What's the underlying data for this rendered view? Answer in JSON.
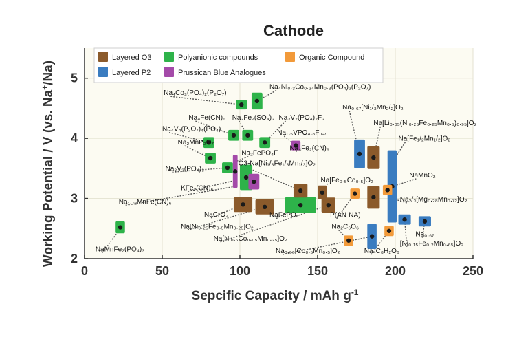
{
  "chart_data": {
    "type": "scatter",
    "title": "Cathode",
    "xlabel": "Sepcific Capacity / mAh g",
    "xlabel_sup": "-1",
    "ylabel": "Working Potential / V (vs. Na",
    "ylabel_sup": "+",
    "ylabel_tail": "/Na)",
    "xlim": [
      0,
      250
    ],
    "ylim": [
      2,
      5.5
    ],
    "xticks": [
      0,
      50,
      100,
      150,
      200,
      250
    ],
    "yticks": [
      2,
      3,
      4,
      5
    ],
    "grid": true,
    "legend_position": "top-left",
    "categories": [
      {
        "id": "o3",
        "name": "Layered O3",
        "color": "#8b5a2b"
      },
      {
        "id": "p2",
        "name": "Layered P2",
        "color": "#3a7cc0"
      },
      {
        "id": "poly",
        "name": "Polyanionic compounds",
        "color": "#2eb34a"
      },
      {
        "id": "pba",
        "name": "Prussican Blue Analogues",
        "color": "#a44aa9"
      },
      {
        "id": "org",
        "name": "Organic Compound",
        "color": "#f29a3a"
      }
    ],
    "points": [
      {
        "cat": "poly",
        "x": 23,
        "y": 2.52,
        "w": 6,
        "h": 0.2
      },
      {
        "cat": "poly",
        "x": 101,
        "y": 4.56,
        "w": 7,
        "h": 0.16
      },
      {
        "cat": "poly",
        "x": 111,
        "y": 4.62,
        "w": 7,
        "h": 0.28
      },
      {
        "cat": "poly",
        "x": 96,
        "y": 4.05,
        "w": 7,
        "h": 0.18
      },
      {
        "cat": "poly",
        "x": 105,
        "y": 4.05,
        "w": 7,
        "h": 0.18
      },
      {
        "cat": "poly",
        "x": 80,
        "y": 3.93,
        "w": 7,
        "h": 0.18
      },
      {
        "cat": "poly",
        "x": 116,
        "y": 3.93,
        "w": 7,
        "h": 0.18
      },
      {
        "cat": "poly",
        "x": 81,
        "y": 3.67,
        "w": 7,
        "h": 0.18
      },
      {
        "cat": "poly",
        "x": 92,
        "y": 3.51,
        "w": 7,
        "h": 0.18
      },
      {
        "cat": "poly",
        "x": 104,
        "y": 3.35,
        "w": 8,
        "h": 0.42
      },
      {
        "cat": "poly",
        "x": 139,
        "y": 2.89,
        "w": 20,
        "h": 0.26
      },
      {
        "cat": "pba",
        "x": 136,
        "y": 3.88,
        "w": 6,
        "h": 0.16
      },
      {
        "cat": "pba",
        "x": 97,
        "y": 3.45,
        "w": 3,
        "h": 0.55
      },
      {
        "cat": "pba",
        "x": 109,
        "y": 3.28,
        "w": 7,
        "h": 0.26
      },
      {
        "cat": "o3",
        "x": 102,
        "y": 2.9,
        "w": 12,
        "h": 0.25
      },
      {
        "cat": "o3",
        "x": 116,
        "y": 2.86,
        "w": 12,
        "h": 0.25
      },
      {
        "cat": "o3",
        "x": 139,
        "y": 3.13,
        "w": 9,
        "h": 0.23
      },
      {
        "cat": "o3",
        "x": 153,
        "y": 3.1,
        "w": 6,
        "h": 0.23
      },
      {
        "cat": "o3",
        "x": 157,
        "y": 2.89,
        "w": 9,
        "h": 0.25
      },
      {
        "cat": "o3",
        "x": 186,
        "y": 3.68,
        "w": 8,
        "h": 0.38
      },
      {
        "cat": "o3",
        "x": 186,
        "y": 3.02,
        "w": 8,
        "h": 0.38
      },
      {
        "cat": "p2",
        "x": 177,
        "y": 3.74,
        "w": 7,
        "h": 0.48
      },
      {
        "cat": "p2",
        "x": 198,
        "y": 3.2,
        "w": 6,
        "h": 1.2
      },
      {
        "cat": "p2",
        "x": 206,
        "y": 2.65,
        "w": 8,
        "h": 0.17
      },
      {
        "cat": "p2",
        "x": 219,
        "y": 2.62,
        "w": 8,
        "h": 0.17
      },
      {
        "cat": "p2",
        "x": 185,
        "y": 2.37,
        "w": 6,
        "h": 0.42
      },
      {
        "cat": "org",
        "x": 174,
        "y": 3.08,
        "w": 6,
        "h": 0.17
      },
      {
        "cat": "org",
        "x": 195,
        "y": 3.14,
        "w": 6,
        "h": 0.17
      },
      {
        "cat": "org",
        "x": 170,
        "y": 2.3,
        "w": 6,
        "h": 0.17
      },
      {
        "cat": "org",
        "x": 196,
        "y": 2.46,
        "w": 6,
        "h": 0.17
      }
    ],
    "annotations": [
      {
        "text": "NaMnFe₂(PO₄)₃",
        "tx": 7,
        "ty": 2.12,
        "ax": 23,
        "ay": 2.5
      },
      {
        "text": "Na₄Co₃(PO₄)₂(P₂O₇)",
        "tx": 51,
        "ty": 4.72,
        "ax": 101,
        "ay": 4.56
      },
      {
        "text": "Na₄Ni₀.₃Co₀.₂₄Mn₀.₃(PO₄)₂(P₂O₇)",
        "tx": 119,
        "ty": 4.82,
        "ax": 111,
        "ay": 4.62
      },
      {
        "text": "Na₄Fe(CN)₆",
        "tx": 67,
        "ty": 4.31,
        "ax": 96,
        "ay": 4.05
      },
      {
        "text": "Na₂Fe₂(SO₄)₃",
        "tx": 95,
        "ty": 4.31,
        "ax": 105,
        "ay": 4.05
      },
      {
        "text": "Na₃V₂(PO₄)₂F₃",
        "tx": 125,
        "ty": 4.31,
        "ax": 116,
        "ay": 3.93
      },
      {
        "text": "Na₀.₆₇[Ni₁/₃Mn₂/₂]O₂",
        "tx": 166,
        "ty": 4.48,
        "ax": 177,
        "ay": 3.74
      },
      {
        "text": "Na₄V₄(P₂O₇)₄(PO₄)",
        "tx": 50,
        "ty": 4.12,
        "ax": 80,
        "ay": 3.93
      },
      {
        "text": "Na₂MnP₂O₇",
        "tx": 60,
        "ty": 3.9,
        "ax": 81,
        "ay": 3.67
      },
      {
        "text": "Na₁.₅VPO₄.₈F₀.₇",
        "tx": 124,
        "ty": 4.06,
        "ax": 136,
        "ay": 3.88
      },
      {
        "text": "Na[Li₀.₀₅(Ni₀.₂₅Fe₀.₂₅Mn₀.₅)₀.₉₅]O₂",
        "tx": 186,
        "ty": 4.22,
        "ax": 186,
        "ay": 3.68
      },
      {
        "text": "Na₄Fe₂(CN)₆",
        "tx": 132,
        "ty": 3.8,
        "ax": 136,
        "ay": 3.88
      },
      {
        "text": "Na₂FePO₄F",
        "tx": 101,
        "ty": 3.72,
        "ax": 96,
        "ay": 3.6
      },
      {
        "text": "Na₃V₂(PO₄)₃",
        "tx": 52,
        "ty": 3.46,
        "ax": 92,
        "ay": 3.51
      },
      {
        "text": "O3-Na[Ni₁/₃Fe₁/₃Mn₁/₃]O₂",
        "tx": 99,
        "ty": 3.55,
        "ax": 139,
        "ay": 3.13
      },
      {
        "text": "Na[Fe₁/₂Mn₁/₂]O₂",
        "tx": 202,
        "ty": 3.96,
        "ax": 198,
        "ay": 3.6
      },
      {
        "text": "KFe₂(CN)₆",
        "tx": 62,
        "ty": 3.14,
        "ax": 97,
        "ay": 3.3
      },
      {
        "text": "Na[Fe₀.₅Co₀.₅]O₂",
        "tx": 152,
        "ty": 3.27,
        "ax": 153,
        "ay": 3.1
      },
      {
        "text": "NaMnO₂",
        "tx": 209,
        "ty": 3.35,
        "ax": 198,
        "ay": 3.2
      },
      {
        "text": "Na₁.₇₂MnFe(CN)₆",
        "tx": 22,
        "ty": 2.91,
        "ax": 97,
        "ay": 3.2
      },
      {
        "text": "Na₂/₃[Mg₀.₂₈Mn₀.₇₂]O₂",
        "tx": 203,
        "ty": 2.95,
        "ax": 198,
        "ay": 3.0
      },
      {
        "text": "NaCrO₂",
        "tx": 77,
        "ty": 2.7,
        "ax": 102,
        "ay": 2.9
      },
      {
        "text": "NaFePO₄",
        "tx": 119,
        "ty": 2.69,
        "ax": 139,
        "ay": 2.89
      },
      {
        "text": "P(AN-NA)",
        "tx": 158,
        "ty": 2.69,
        "ax": 174,
        "ay": 3.08
      },
      {
        "text": "Na[Ni₀.₂₅Fe₀.₅Mn₀.₂₅]O₂",
        "tx": 62,
        "ty": 2.5,
        "ax": 116,
        "ay": 2.86
      },
      {
        "text": "Na₂C₆O₆",
        "tx": 159,
        "ty": 2.5,
        "ax": 170,
        "ay": 2.3
      },
      {
        "text": "Na₀.₆₇",
        "tx": 213,
        "ty": 2.37,
        "ax": 219,
        "ay": 2.62
      },
      {
        "text": "Na[Ni₀.₆Co₀.₀₅Mn₀.₃₅]O₂",
        "tx": 83,
        "ty": 2.3,
        "ax": 157,
        "ay": 2.89
      },
      {
        "text": "[Ni₀.₁₅Fe₀.₂Mn₀.₆₅]O₂",
        "tx": 203,
        "ty": 2.22,
        "ax": 206,
        "ay": 2.65
      },
      {
        "text": "Na₀.₆₆[Co₀.₅Mn₀.₅]O₂",
        "tx": 123,
        "ty": 2.09,
        "ax": 185,
        "ay": 2.37
      },
      {
        "text": "Na₄C₈H₂O₆",
        "tx": 180,
        "ty": 2.09,
        "ax": 196,
        "ay": 2.46
      }
    ]
  }
}
